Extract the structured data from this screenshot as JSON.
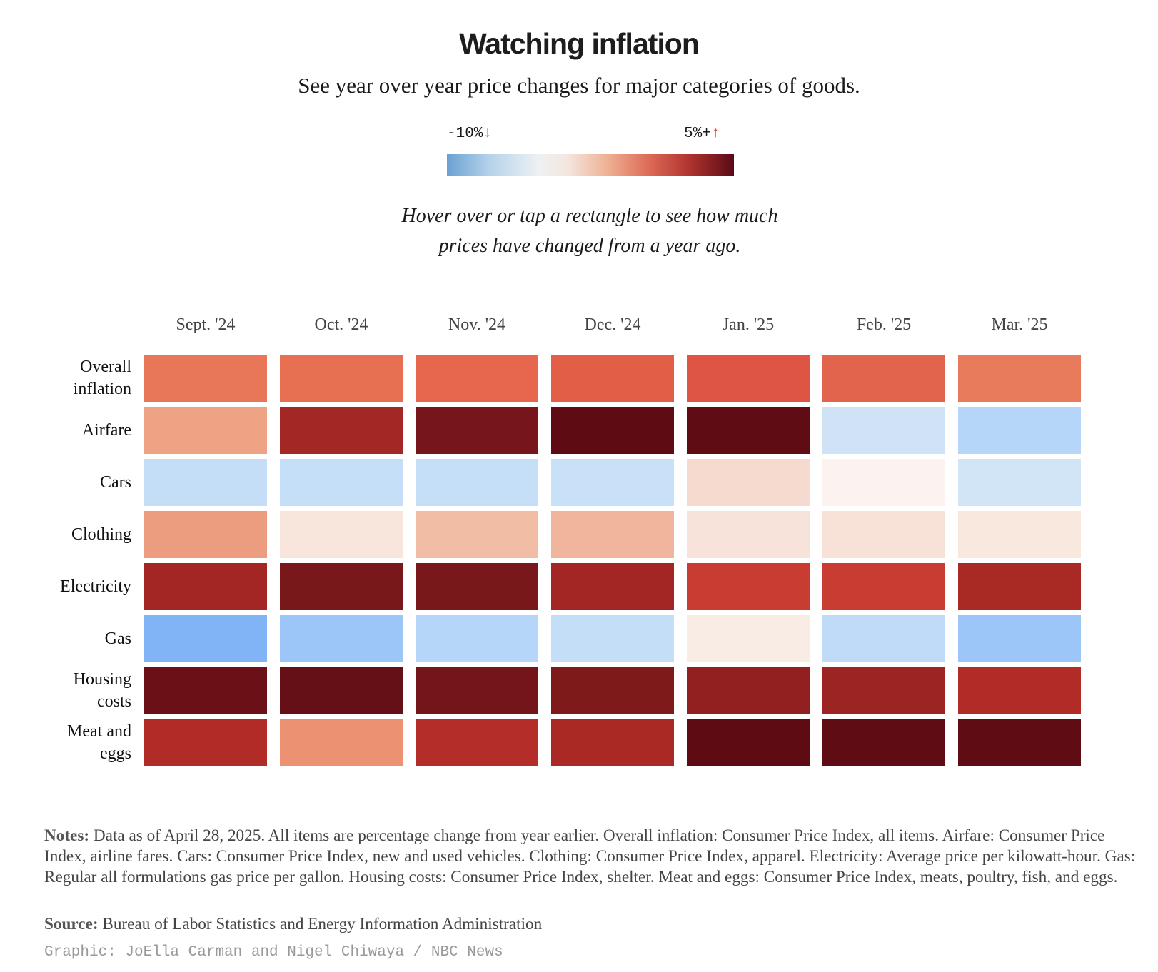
{
  "header": {
    "title": "Watching inflation",
    "subtitle": "See year over year price changes for major categories of goods."
  },
  "legend": {
    "low_label": "-10%",
    "high_label": "5%+",
    "low_arrow": "↓",
    "high_arrow": "↑",
    "colors": [
      "#6aa1d2",
      "#eef1f3",
      "#5b0a16"
    ]
  },
  "instructions": {
    "line1": "Hover over or tap a rectangle to see how much",
    "line2": "prices have changed from a year ago."
  },
  "chart_data": {
    "type": "heatmap",
    "title": "Watching inflation",
    "columns": [
      "Sept. '24",
      "Oct. '24",
      "Nov. '24",
      "Dec. '24",
      "Jan. '25",
      "Feb. '25",
      "Mar. '25"
    ],
    "rows": [
      {
        "label": [
          "Overall",
          "inflation"
        ],
        "colors": [
          "#e8775a",
          "#e76f52",
          "#e6664e",
          "#e25e47",
          "#de5643",
          "#e3644c",
          "#e97b5d"
        ]
      },
      {
        "label": [
          "Airfare"
        ],
        "colors": [
          "#eea385",
          "#a22725",
          "#77161a",
          "#5f0b14",
          "#600c15",
          "#d0e3f6",
          "#b5d6f8"
        ]
      },
      {
        "label": [
          "Cars"
        ],
        "colors": [
          "#c5def8",
          "#c6dff8",
          "#c6dff8",
          "#c8e0f8",
          "#f6dacf",
          "#fcf3f0",
          "#d2e5f7"
        ]
      },
      {
        "label": [
          "Clothing"
        ],
        "colors": [
          "#ec9d80",
          "#f8e6dd",
          "#f1bda4",
          "#f0b59c",
          "#f8e3da",
          "#f8e1d7",
          "#f9e8de"
        ]
      },
      {
        "label": [
          "Electricity"
        ],
        "colors": [
          "#a32624",
          "#78181a",
          "#78181a",
          "#a32624",
          "#c83c31",
          "#c83c31",
          "#a92925"
        ]
      },
      {
        "label": [
          "Gas"
        ],
        "colors": [
          "#81b4f6",
          "#9cc6f8",
          "#b5d6f8",
          "#c5def8",
          "#f9ece5",
          "#c0dbf7",
          "#9cc6f8"
        ]
      },
      {
        "label": [
          "Housing",
          "costs"
        ],
        "colors": [
          "#6a1016",
          "#651016",
          "#741619",
          "#7f1a1b",
          "#922020",
          "#9c2423",
          "#b12b27"
        ]
      },
      {
        "label": [
          "Meat and",
          "eggs"
        ],
        "colors": [
          "#b12b27",
          "#ec9273",
          "#b52d28",
          "#ab2925",
          "#5f0b14",
          "#600c15",
          "#600c15"
        ]
      }
    ],
    "legend": {
      "min": "-10%",
      "max": "5%+"
    }
  },
  "footer": {
    "notes_label": "Notes:",
    "notes_text": " Data as of April 28, 2025. All items are percentage change from year earlier. Overall inflation: Consumer Price Index, all items. Airfare: Consumer Price Index, airline fares. Cars: Consumer Price Index, new and used vehicles. Clothing: Consumer Price Index, apparel. Electricity: Average price per kilowatt-hour. Gas: Regular all formulations gas price per gallon. Housing costs: Consumer Price Index, shelter. Meat and eggs: Consumer Price Index, meats, poultry, fish, and eggs.",
    "source_label": "Source:",
    "source_text": " Bureau of Labor Statistics and Energy Information Administration",
    "credit": "Graphic: JoElla Carman and Nigel Chiwaya / NBC News"
  }
}
